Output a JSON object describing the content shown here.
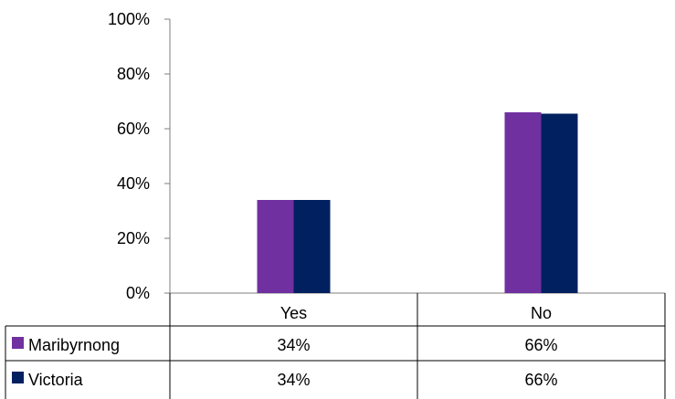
{
  "chart_data": {
    "type": "bar",
    "categories": [
      "Yes",
      "No"
    ],
    "series": [
      {
        "name": "Maribyrnong",
        "values": [
          34,
          66
        ],
        "color": "#7030a0",
        "display": [
          "34%",
          "66%"
        ]
      },
      {
        "name": "Victoria",
        "values": [
          34,
          65.5
        ],
        "color": "#002060",
        "display": [
          "34%",
          "66%"
        ]
      }
    ],
    "ylim": [
      0,
      100
    ],
    "yticks": [
      0,
      20,
      40,
      60,
      80,
      100
    ],
    "ytick_labels": [
      "0%",
      "20%",
      "40%",
      "60%",
      "80%",
      "100%"
    ],
    "title": "",
    "xlabel": "",
    "ylabel": "",
    "grid": false,
    "legend": "data-table"
  }
}
